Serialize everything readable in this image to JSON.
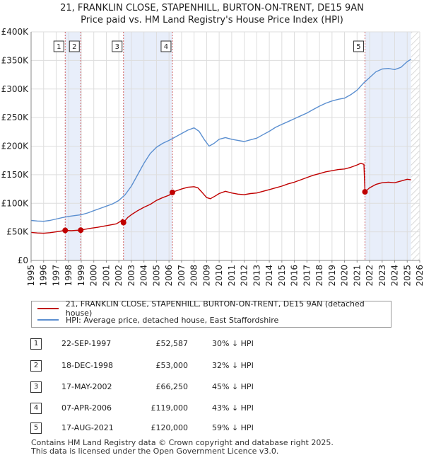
{
  "header": {
    "line1": "21, FRANKLIN CLOSE, STAPENHILL, BURTON-ON-TRENT, DE15 9AN",
    "line2": "Price paid vs. HM Land Registry's House Price Index (HPI)"
  },
  "chart_data": {
    "type": "line",
    "title": "21, FRANKLIN CLOSE, STAPENHILL, BURTON-ON-TRENT, DE15 9AN — Price paid vs. HM Land Registry's House Price Index (HPI)",
    "xlim": [
      1995,
      2026
    ],
    "ylim": [
      0,
      400000
    ],
    "x_ticks": [
      1995,
      1996,
      1997,
      1998,
      1999,
      2000,
      2001,
      2002,
      2003,
      2004,
      2005,
      2006,
      2007,
      2008,
      2009,
      2010,
      2011,
      2012,
      2013,
      2014,
      2015,
      2016,
      2017,
      2018,
      2019,
      2020,
      2021,
      2022,
      2023,
      2024,
      2025,
      2026
    ],
    "y_ticks": [
      {
        "value": 0,
        "label": "£0"
      },
      {
        "value": 50000,
        "label": "£50K"
      },
      {
        "value": 100000,
        "label": "£100K"
      },
      {
        "value": 150000,
        "label": "£150K"
      },
      {
        "value": 200000,
        "label": "£200K"
      },
      {
        "value": 250000,
        "label": "£250K"
      },
      {
        "value": 300000,
        "label": "£300K"
      },
      {
        "value": 350000,
        "label": "£350K"
      },
      {
        "value": 400000,
        "label": "£400K"
      }
    ],
    "colors": {
      "property": "#c00000",
      "hpi": "#5b8fd0",
      "shade": "#e8eefa",
      "grid": "#dddddd"
    },
    "series": [
      {
        "name": "21, FRANKLIN CLOSE, STAPENHILL, BURTON-ON-TRENT, DE15 9AN (detached house)",
        "color": "#c00000",
        "points": [
          [
            1995.0,
            49000
          ],
          [
            1995.5,
            48000
          ],
          [
            1996.0,
            47500
          ],
          [
            1996.5,
            48500
          ],
          [
            1997.0,
            50000
          ],
          [
            1997.4,
            51500
          ],
          [
            1997.72,
            52587
          ],
          [
            1998.2,
            52000
          ],
          [
            1998.6,
            52800
          ],
          [
            1998.96,
            53000
          ],
          [
            1999.3,
            54500
          ],
          [
            1999.8,
            56500
          ],
          [
            2000.3,
            58000
          ],
          [
            2000.8,
            60000
          ],
          [
            2001.3,
            62000
          ],
          [
            2001.8,
            64000
          ],
          [
            2002.1,
            68000
          ],
          [
            2002.3,
            72000
          ],
          [
            2002.37,
            66250
          ],
          [
            2002.7,
            75000
          ],
          [
            2003.0,
            80000
          ],
          [
            2003.5,
            87000
          ],
          [
            2004.0,
            93000
          ],
          [
            2004.5,
            98000
          ],
          [
            2005.0,
            105000
          ],
          [
            2005.5,
            110000
          ],
          [
            2006.0,
            114000
          ],
          [
            2006.27,
            119000
          ],
          [
            2006.6,
            122000
          ],
          [
            2007.0,
            125000
          ],
          [
            2007.5,
            128000
          ],
          [
            2008.0,
            129000
          ],
          [
            2008.3,
            127000
          ],
          [
            2008.6,
            120000
          ],
          [
            2009.0,
            110000
          ],
          [
            2009.3,
            108000
          ],
          [
            2009.7,
            113000
          ],
          [
            2010.0,
            117000
          ],
          [
            2010.5,
            121000
          ],
          [
            2011.0,
            118000
          ],
          [
            2011.5,
            116000
          ],
          [
            2012.0,
            115000
          ],
          [
            2012.5,
            117000
          ],
          [
            2013.0,
            118000
          ],
          [
            2013.5,
            121000
          ],
          [
            2014.0,
            124000
          ],
          [
            2014.5,
            127000
          ],
          [
            2015.0,
            130000
          ],
          [
            2015.5,
            134000
          ],
          [
            2016.0,
            137000
          ],
          [
            2016.5,
            141000
          ],
          [
            2017.0,
            145000
          ],
          [
            2017.5,
            149000
          ],
          [
            2018.0,
            152000
          ],
          [
            2018.5,
            155000
          ],
          [
            2019.0,
            157000
          ],
          [
            2019.5,
            159000
          ],
          [
            2020.0,
            160000
          ],
          [
            2020.5,
            163000
          ],
          [
            2021.0,
            167000
          ],
          [
            2021.3,
            170000
          ],
          [
            2021.55,
            168000
          ],
          [
            2021.63,
            120000
          ],
          [
            2022.0,
            127000
          ],
          [
            2022.5,
            133000
          ],
          [
            2023.0,
            136000
          ],
          [
            2023.5,
            137000
          ],
          [
            2024.0,
            136000
          ],
          [
            2024.5,
            139000
          ],
          [
            2025.0,
            142000
          ],
          [
            2025.3,
            141000
          ]
        ]
      },
      {
        "name": "HPI: Average price, detached house, East Staffordshire",
        "color": "#5b8fd0",
        "points": [
          [
            1995.0,
            70000
          ],
          [
            1995.5,
            69000
          ],
          [
            1996.0,
            68500
          ],
          [
            1996.5,
            70000
          ],
          [
            1997.0,
            72500
          ],
          [
            1997.5,
            75000
          ],
          [
            1998.0,
            77000
          ],
          [
            1998.5,
            78500
          ],
          [
            1999.0,
            80000
          ],
          [
            1999.5,
            83000
          ],
          [
            2000.0,
            87000
          ],
          [
            2000.5,
            91000
          ],
          [
            2001.0,
            95000
          ],
          [
            2001.5,
            99000
          ],
          [
            2002.0,
            105000
          ],
          [
            2002.5,
            115000
          ],
          [
            2003.0,
            130000
          ],
          [
            2003.5,
            150000
          ],
          [
            2004.0,
            170000
          ],
          [
            2004.5,
            187000
          ],
          [
            2005.0,
            198000
          ],
          [
            2005.5,
            205000
          ],
          [
            2006.0,
            210000
          ],
          [
            2006.5,
            216000
          ],
          [
            2007.0,
            222000
          ],
          [
            2007.5,
            228000
          ],
          [
            2008.0,
            232000
          ],
          [
            2008.4,
            226000
          ],
          [
            2008.8,
            212000
          ],
          [
            2009.2,
            200000
          ],
          [
            2009.6,
            205000
          ],
          [
            2010.0,
            212000
          ],
          [
            2010.5,
            215000
          ],
          [
            2011.0,
            212000
          ],
          [
            2011.5,
            210000
          ],
          [
            2012.0,
            208000
          ],
          [
            2012.5,
            211000
          ],
          [
            2013.0,
            214000
          ],
          [
            2013.5,
            220000
          ],
          [
            2014.0,
            226000
          ],
          [
            2014.5,
            233000
          ],
          [
            2015.0,
            238000
          ],
          [
            2015.5,
            243000
          ],
          [
            2016.0,
            248000
          ],
          [
            2016.5,
            253000
          ],
          [
            2017.0,
            258000
          ],
          [
            2017.5,
            264000
          ],
          [
            2018.0,
            270000
          ],
          [
            2018.5,
            275000
          ],
          [
            2019.0,
            279000
          ],
          [
            2019.5,
            282000
          ],
          [
            2020.0,
            284000
          ],
          [
            2020.5,
            290000
          ],
          [
            2021.0,
            298000
          ],
          [
            2021.5,
            310000
          ],
          [
            2022.0,
            320000
          ],
          [
            2022.5,
            330000
          ],
          [
            2023.0,
            335000
          ],
          [
            2023.5,
            336000
          ],
          [
            2024.0,
            334000
          ],
          [
            2024.5,
            338000
          ],
          [
            2025.0,
            348000
          ],
          [
            2025.3,
            352000
          ]
        ]
      }
    ],
    "transactions": [
      {
        "label": "1",
        "x": 1997.72,
        "price": 52587,
        "date": "22-SEP-1997",
        "price_label": "£52,587",
        "hpi_diff": "30% ↓ HPI"
      },
      {
        "label": "2",
        "x": 1998.96,
        "price": 53000,
        "date": "18-DEC-1998",
        "price_label": "£53,000",
        "hpi_diff": "32% ↓ HPI"
      },
      {
        "label": "3",
        "x": 2002.37,
        "price": 66250,
        "date": "17-MAY-2002",
        "price_label": "£66,250",
        "hpi_diff": "45% ↓ HPI"
      },
      {
        "label": "4",
        "x": 2006.27,
        "price": 119000,
        "date": "07-APR-2006",
        "price_label": "£119,000",
        "hpi_diff": "43% ↓ HPI"
      },
      {
        "label": "5",
        "x": 2021.63,
        "price": 120000,
        "date": "17-AUG-2021",
        "price_label": "£120,000",
        "hpi_diff": "59% ↓ HPI"
      }
    ],
    "shaded_ranges": [
      [
        1997.72,
        1998.96
      ],
      [
        2002.37,
        2006.27
      ],
      [
        2021.63,
        2025.3
      ]
    ],
    "hatch_from": 2025.3
  },
  "legend": {
    "property_label": "21, FRANKLIN CLOSE, STAPENHILL, BURTON-ON-TRENT, DE15 9AN (detached house)",
    "hpi_label": "HPI: Average price, detached house, East Staffordshire"
  },
  "footer": {
    "line1": "Contains HM Land Registry data © Crown copyright and database right 2025.",
    "line2": "This data is licensed under the Open Government Licence v3.0."
  }
}
